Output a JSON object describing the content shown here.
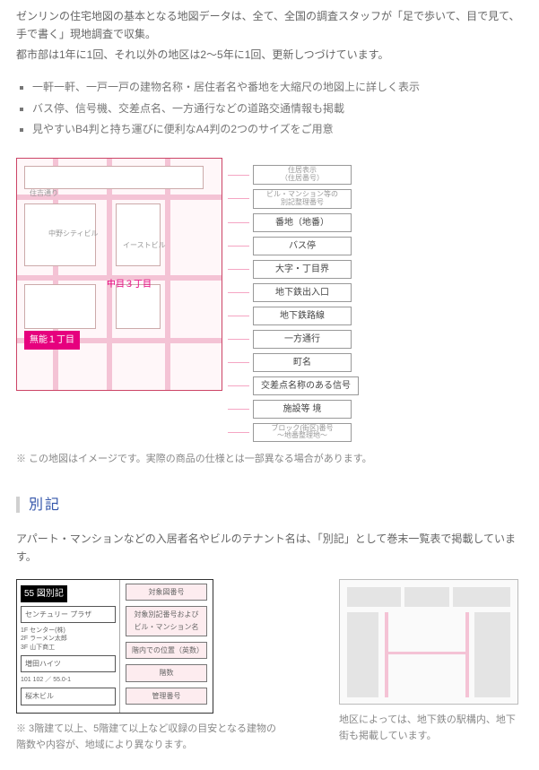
{
  "intro": {
    "line1": "ゼンリンの住宅地図の基本となる地図データは、全て、全国の調査スタッフが「足で歩いて、目で見て、手で書く」現地調査で収集。",
    "line2": "都市部は1年に1回、それ以外の地区は2〜5年に1回、更新しつづけています。"
  },
  "features": [
    "一軒一軒、一戸一戸の建物名称・居住者名や番地を大縮尺の地図上に詳しく表示",
    "バス停、信号機、交差点名、一方通行などの道路交通情報も掲載",
    "見やすいB4判と持ち運びに便利なA4判の2つのサイズをご用意"
  ],
  "map": {
    "ward_label": "無能１丁目",
    "center_label": "中目３丁目",
    "street_top": "住吉通り",
    "note": "※ この地図はイメージです。実際の商品の仕様とは一部異なる場合があります。",
    "legend": [
      {
        "label": "住居表示\n（住居番号）",
        "tiny": true
      },
      {
        "label": "ビル・マンション等の\n別記整理番号",
        "tiny": true
      },
      {
        "label": "番地（地番）"
      },
      {
        "label": "バス停"
      },
      {
        "label": "大字・丁目界"
      },
      {
        "label": "地下鉄出入口"
      },
      {
        "label": "地下鉄路線"
      },
      {
        "label": "一方通行"
      },
      {
        "label": "町名"
      },
      {
        "label": "交差点名称のある信号"
      },
      {
        "label": "施設等 境"
      },
      {
        "label": "ブロック(街区)番号\n〜地番整理地〜",
        "tiny": true
      }
    ]
  },
  "bekki": {
    "heading": "別記",
    "lead": "アパート・マンションなどの入居者名やビルのテナント名は、「別記」として巻末一覧表で掲載しています。",
    "left_image": {
      "top_badge": "55 図別記",
      "box1": "センチュリー\nプラザ",
      "box2": "増田ハイツ",
      "box3": "桜木ビル",
      "right_labels": [
        "対象図番号",
        "対象別記番号および\nビル・マンション名",
        "階内での位置（英数）",
        "階数",
        "管理番号"
      ]
    },
    "left_note": "※ 3階建て以上、5階建て以上など収録の目安となる建物の階数や内容が、地域により異なります。",
    "right_note": "地区によっては、地下鉄の駅構内、地下街も掲載しています。"
  },
  "colors": {
    "pink": "#e6007e",
    "pale_pink": "#f4c3d5",
    "blue_head": "#3355aa"
  }
}
